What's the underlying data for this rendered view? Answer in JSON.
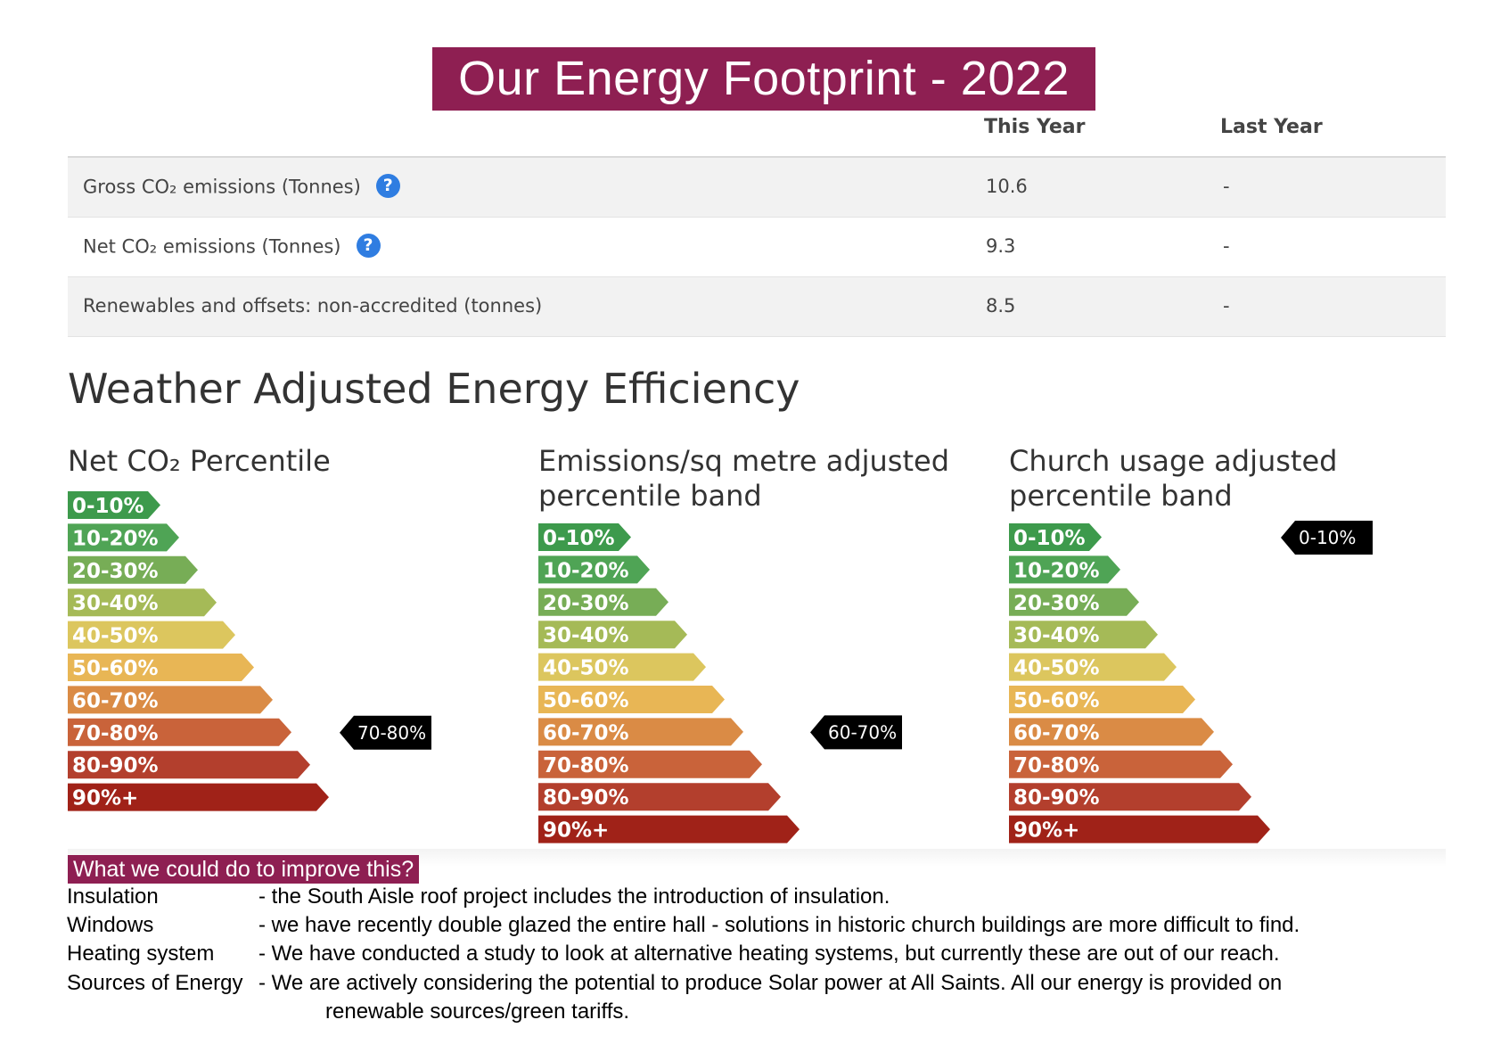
{
  "title": "Our Energy Footprint - 2022",
  "table": {
    "col_this_year": "This Year",
    "col_last_year": "Last Year",
    "rows": [
      {
        "label": "Gross CO₂ emissions (Tonnes)",
        "this_year": "10.6",
        "last_year": "-",
        "help_icon": "question-icon"
      },
      {
        "label": "Net CO₂ emissions (Tonnes)",
        "this_year": "9.3",
        "last_year": "-",
        "help_icon": "question-icon"
      },
      {
        "label": "Renewables and offsets: non-accredited (tonnes)",
        "this_year": "8.5",
        "last_year": "-"
      }
    ]
  },
  "section_title": "Weather Adjusted Energy Efficiency",
  "bands": [
    "0-10%",
    "10-20%",
    "20-30%",
    "30-40%",
    "40-50%",
    "50-60%",
    "60-70%",
    "70-80%",
    "80-90%",
    "90%+"
  ],
  "band_colors": [
    "#3d9a4c",
    "#4fa455",
    "#77ad56",
    "#a5ba57",
    "#dcc65e",
    "#e8b655",
    "#da8b45",
    "#c9633a",
    "#b33f2d",
    "#a02218"
  ],
  "panels": [
    {
      "title": "Net CO₂ Percentile",
      "marker": "70-80%"
    },
    {
      "title": "Emissions/sq metre adjusted\npercentile band",
      "marker": "60-70%"
    },
    {
      "title": "Church usage adjusted\npercentile band",
      "marker": "0-10%"
    }
  ],
  "improve": {
    "heading": "What we could do to improve this?",
    "items": [
      {
        "key": "Insulation",
        "text": "- the South Aisle roof project includes the introduction of insulation."
      },
      {
        "key": "Windows",
        "text": "- we have recently double glazed the entire hall - solutions in historic church buildings are more difficult to find."
      },
      {
        "key": "Heating system",
        "text": "- We have conducted a study to look at alternative heating systems, but currently these are out of our reach."
      },
      {
        "key": "Sources of Energy",
        "text": "- We are actively considering the potential to produce Solar power at All Saints. All our energy is provided on"
      }
    ],
    "continuation": "renewable sources/green tariffs."
  }
}
